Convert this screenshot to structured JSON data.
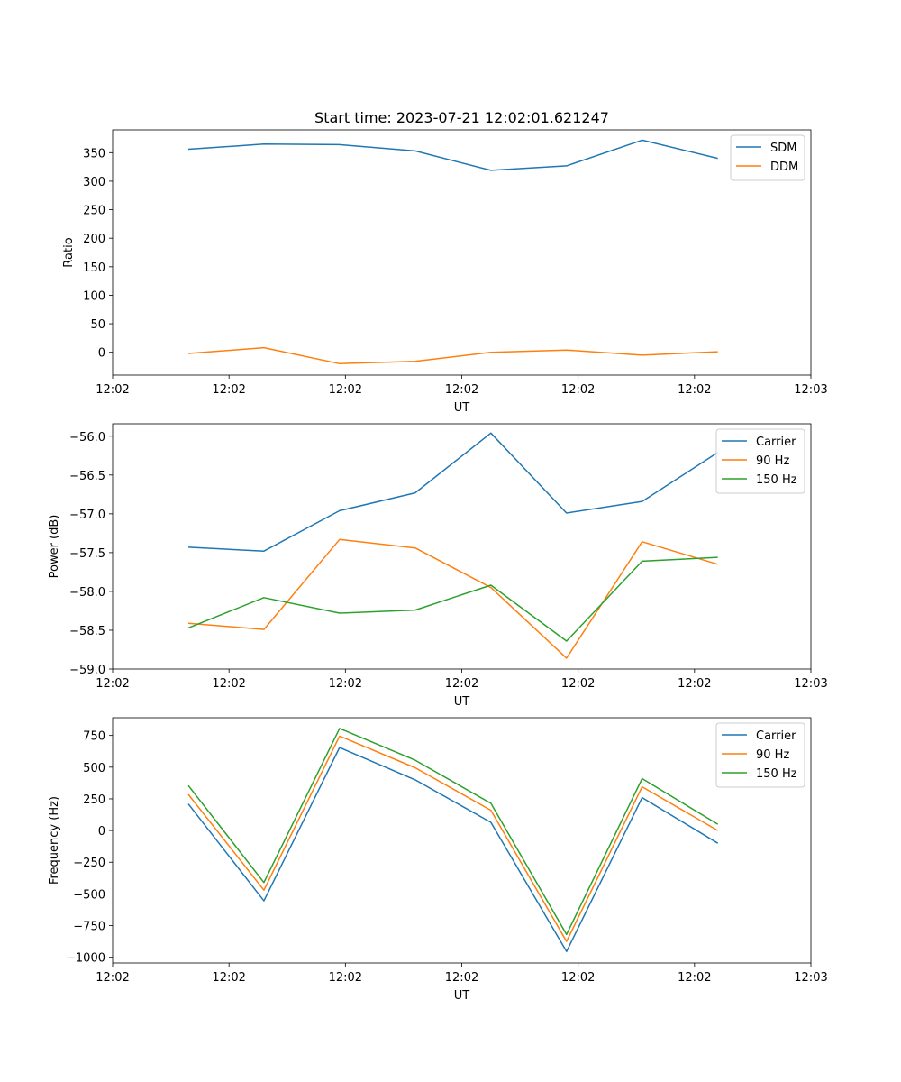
{
  "chart_data": [
    {
      "type": "line",
      "title": "Start time: 2023-07-21 12:02:01.621247",
      "xlabel": "UT",
      "ylabel": "Ratio",
      "x": [
        0.65,
        1.3,
        1.95,
        2.6,
        3.25,
        3.9,
        4.55,
        5.2
      ],
      "xlim": [
        0,
        6
      ],
      "xticks": [
        0,
        1,
        2,
        3,
        4,
        5,
        6
      ],
      "xtick_labels": [
        "12:02",
        "12:02",
        "12:02",
        "12:02",
        "12:02",
        "12:02",
        "12:03"
      ],
      "ylim": [
        -40,
        390
      ],
      "yticks": [
        0,
        50,
        100,
        150,
        200,
        250,
        300,
        350
      ],
      "ytick_labels": [
        "0",
        "50",
        "100",
        "150",
        "200",
        "250",
        "300",
        "350"
      ],
      "legend_position": "top-right",
      "series": [
        {
          "name": "SDM",
          "color": "#1f77b4",
          "values": [
            356,
            365,
            364,
            353,
            319,
            327,
            372,
            340
          ]
        },
        {
          "name": "DDM",
          "color": "#ff7f0e",
          "values": [
            -2,
            8,
            -20,
            -16,
            0,
            4,
            -5,
            1
          ]
        }
      ]
    },
    {
      "type": "line",
      "title": "",
      "xlabel": "UT",
      "ylabel": "Power (dB)",
      "x": [
        0.65,
        1.3,
        1.95,
        2.6,
        3.25,
        3.9,
        4.55,
        5.2
      ],
      "xlim": [
        0,
        6
      ],
      "xticks": [
        0,
        1,
        2,
        3,
        4,
        5,
        6
      ],
      "xtick_labels": [
        "12:02",
        "12:02",
        "12:02",
        "12:02",
        "12:02",
        "12:02",
        "12:03"
      ],
      "ylim": [
        -59.0,
        -55.84
      ],
      "yticks": [
        -59.0,
        -58.5,
        -58.0,
        -57.5,
        -57.0,
        -56.5,
        -56.0
      ],
      "ytick_labels": [
        "−59.0",
        "−58.5",
        "−58.0",
        "−57.5",
        "−57.0",
        "−56.5",
        "−56.0"
      ],
      "legend_position": "top-right",
      "series": [
        {
          "name": "Carrier",
          "color": "#1f77b4",
          "values": [
            -57.43,
            -57.48,
            -56.96,
            -56.73,
            -55.96,
            -56.99,
            -56.84,
            -56.21
          ]
        },
        {
          "name": "90 Hz",
          "color": "#ff7f0e",
          "values": [
            -58.41,
            -58.49,
            -57.33,
            -57.44,
            -57.95,
            -58.86,
            -57.36,
            -57.65
          ]
        },
        {
          "name": "150 Hz",
          "color": "#2ca02c",
          "values": [
            -58.47,
            -58.08,
            -58.28,
            -58.24,
            -57.92,
            -58.64,
            -57.61,
            -57.56
          ]
        }
      ]
    },
    {
      "type": "line",
      "title": "",
      "xlabel": "UT",
      "ylabel": "Frequency (Hz)",
      "x": [
        0.65,
        1.3,
        1.95,
        2.6,
        3.25,
        3.9,
        4.55,
        5.2
      ],
      "xlim": [
        0,
        6
      ],
      "xticks": [
        0,
        1,
        2,
        3,
        4,
        5,
        6
      ],
      "xtick_labels": [
        "12:02",
        "12:02",
        "12:02",
        "12:02",
        "12:02",
        "12:02",
        "12:03"
      ],
      "ylim": [
        -1045,
        890
      ],
      "yticks": [
        -1000,
        -750,
        -500,
        -250,
        0,
        250,
        500,
        750
      ],
      "ytick_labels": [
        "−1000",
        "−750",
        "−500",
        "−250",
        "0",
        "250",
        "500",
        "750"
      ],
      "legend_position": "top-right",
      "series": [
        {
          "name": "Carrier",
          "color": "#1f77b4",
          "values": [
            210,
            -555,
            655,
            400,
            65,
            -955,
            260,
            -100
          ]
        },
        {
          "name": "90 Hz",
          "color": "#ff7f0e",
          "values": [
            285,
            -470,
            745,
            495,
            160,
            -875,
            345,
            0
          ]
        },
        {
          "name": "150 Hz",
          "color": "#2ca02c",
          "values": [
            355,
            -410,
            805,
            555,
            215,
            -820,
            410,
            50
          ]
        }
      ]
    }
  ]
}
